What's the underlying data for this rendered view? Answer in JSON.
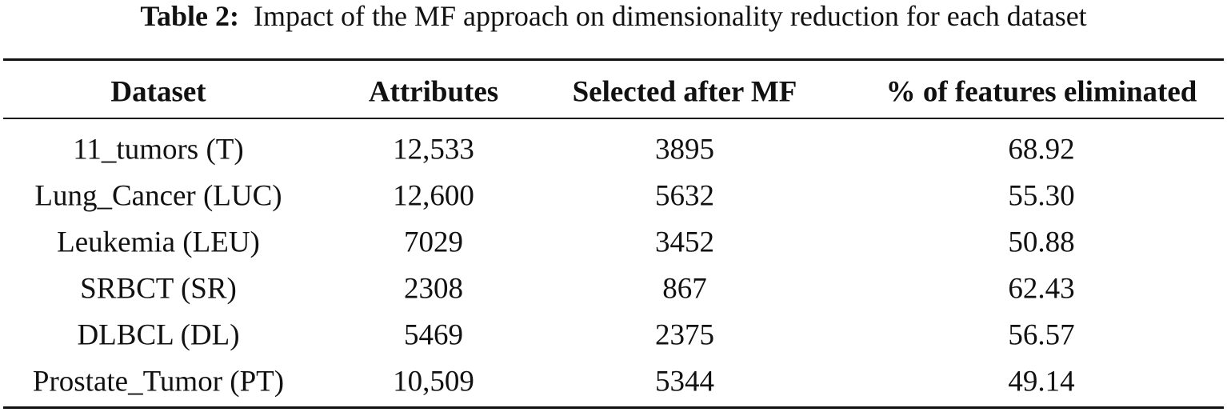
{
  "caption": {
    "label": "Table 2:",
    "text": "Impact of the MF approach on dimensionality reduction for each dataset"
  },
  "table": {
    "header": [
      "Dataset",
      "Attributes",
      "Selected after MF",
      "% of features eliminated"
    ],
    "rows": [
      [
        "11_tumors (T)",
        "12,533",
        "3895",
        "68.92"
      ],
      [
        "Lung_Cancer (LUC)",
        "12,600",
        "5632",
        "55.30"
      ],
      [
        "Leukemia (LEU)",
        "7029",
        "3452",
        "50.88"
      ],
      [
        "SRBCT (SR)",
        "2308",
        "867",
        "62.43"
      ],
      [
        "DLBCL (DL)",
        "5469",
        "2375",
        "56.57"
      ],
      [
        "Prostate_Tumor (PT)",
        "10,509",
        "5344",
        "49.14"
      ]
    ]
  }
}
